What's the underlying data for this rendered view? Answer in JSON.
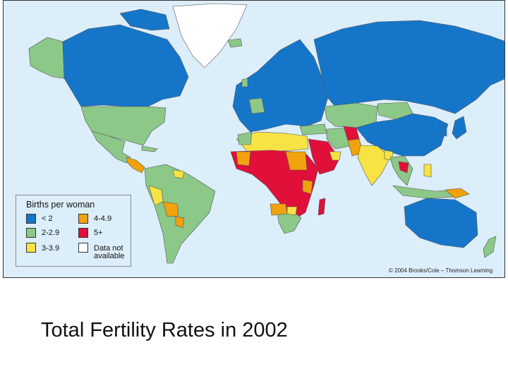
{
  "map": {
    "title": "Total Fertility Rates in 2002",
    "copyright": "© 2004 Brooks/Cole – Thomson Learning",
    "colors": {
      "ocean": "#dceefa",
      "lt2": "#1576c9",
      "r2_2_9": "#8cc887",
      "r3_3_9": "#f7e343",
      "r4_4_9": "#f1a20d",
      "r5plus": "#e0103a",
      "na": "#ffffff"
    },
    "legend": {
      "title": "Births per woman",
      "items": [
        {
          "label": "< 2",
          "color": "#1576c9"
        },
        {
          "label": "2-2.9",
          "color": "#8cc887"
        },
        {
          "label": "3-3.9",
          "color": "#f7e343"
        },
        {
          "label": "4-4.9",
          "color": "#f1a20d"
        },
        {
          "label": "5+",
          "color": "#e0103a"
        },
        {
          "label": "Data not available",
          "color": "#ffffff"
        }
      ]
    }
  }
}
